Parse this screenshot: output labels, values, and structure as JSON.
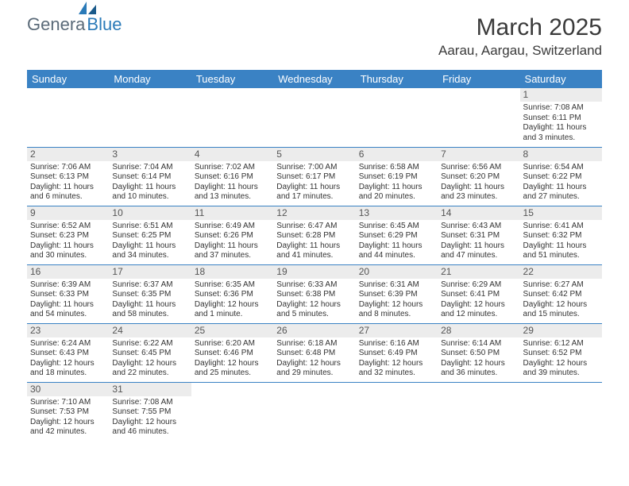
{
  "logo": {
    "main": "Genera",
    "sub": "Blue"
  },
  "title": "March 2025",
  "location": "Aarau, Aargau, Switzerland",
  "colors": {
    "header_bg": "#3a82c4",
    "header_text": "#ffffff",
    "daynum_bg": "#ececec",
    "border": "#3a82c4",
    "title_color": "#3a3a3a",
    "logo_main": "#5a6a78",
    "logo_sub": "#2a7ab8"
  },
  "day_headers": [
    "Sunday",
    "Monday",
    "Tuesday",
    "Wednesday",
    "Thursday",
    "Friday",
    "Saturday"
  ],
  "weeks": [
    [
      {
        "n": "",
        "sr": "",
        "ss": "",
        "dl": ""
      },
      {
        "n": "",
        "sr": "",
        "ss": "",
        "dl": ""
      },
      {
        "n": "",
        "sr": "",
        "ss": "",
        "dl": ""
      },
      {
        "n": "",
        "sr": "",
        "ss": "",
        "dl": ""
      },
      {
        "n": "",
        "sr": "",
        "ss": "",
        "dl": ""
      },
      {
        "n": "",
        "sr": "",
        "ss": "",
        "dl": ""
      },
      {
        "n": "1",
        "sr": "Sunrise: 7:08 AM",
        "ss": "Sunset: 6:11 PM",
        "dl": "Daylight: 11 hours and 3 minutes."
      }
    ],
    [
      {
        "n": "2",
        "sr": "Sunrise: 7:06 AM",
        "ss": "Sunset: 6:13 PM",
        "dl": "Daylight: 11 hours and 6 minutes."
      },
      {
        "n": "3",
        "sr": "Sunrise: 7:04 AM",
        "ss": "Sunset: 6:14 PM",
        "dl": "Daylight: 11 hours and 10 minutes."
      },
      {
        "n": "4",
        "sr": "Sunrise: 7:02 AM",
        "ss": "Sunset: 6:16 PM",
        "dl": "Daylight: 11 hours and 13 minutes."
      },
      {
        "n": "5",
        "sr": "Sunrise: 7:00 AM",
        "ss": "Sunset: 6:17 PM",
        "dl": "Daylight: 11 hours and 17 minutes."
      },
      {
        "n": "6",
        "sr": "Sunrise: 6:58 AM",
        "ss": "Sunset: 6:19 PM",
        "dl": "Daylight: 11 hours and 20 minutes."
      },
      {
        "n": "7",
        "sr": "Sunrise: 6:56 AM",
        "ss": "Sunset: 6:20 PM",
        "dl": "Daylight: 11 hours and 23 minutes."
      },
      {
        "n": "8",
        "sr": "Sunrise: 6:54 AM",
        "ss": "Sunset: 6:22 PM",
        "dl": "Daylight: 11 hours and 27 minutes."
      }
    ],
    [
      {
        "n": "9",
        "sr": "Sunrise: 6:52 AM",
        "ss": "Sunset: 6:23 PM",
        "dl": "Daylight: 11 hours and 30 minutes."
      },
      {
        "n": "10",
        "sr": "Sunrise: 6:51 AM",
        "ss": "Sunset: 6:25 PM",
        "dl": "Daylight: 11 hours and 34 minutes."
      },
      {
        "n": "11",
        "sr": "Sunrise: 6:49 AM",
        "ss": "Sunset: 6:26 PM",
        "dl": "Daylight: 11 hours and 37 minutes."
      },
      {
        "n": "12",
        "sr": "Sunrise: 6:47 AM",
        "ss": "Sunset: 6:28 PM",
        "dl": "Daylight: 11 hours and 41 minutes."
      },
      {
        "n": "13",
        "sr": "Sunrise: 6:45 AM",
        "ss": "Sunset: 6:29 PM",
        "dl": "Daylight: 11 hours and 44 minutes."
      },
      {
        "n": "14",
        "sr": "Sunrise: 6:43 AM",
        "ss": "Sunset: 6:31 PM",
        "dl": "Daylight: 11 hours and 47 minutes."
      },
      {
        "n": "15",
        "sr": "Sunrise: 6:41 AM",
        "ss": "Sunset: 6:32 PM",
        "dl": "Daylight: 11 hours and 51 minutes."
      }
    ],
    [
      {
        "n": "16",
        "sr": "Sunrise: 6:39 AM",
        "ss": "Sunset: 6:33 PM",
        "dl": "Daylight: 11 hours and 54 minutes."
      },
      {
        "n": "17",
        "sr": "Sunrise: 6:37 AM",
        "ss": "Sunset: 6:35 PM",
        "dl": "Daylight: 11 hours and 58 minutes."
      },
      {
        "n": "18",
        "sr": "Sunrise: 6:35 AM",
        "ss": "Sunset: 6:36 PM",
        "dl": "Daylight: 12 hours and 1 minute."
      },
      {
        "n": "19",
        "sr": "Sunrise: 6:33 AM",
        "ss": "Sunset: 6:38 PM",
        "dl": "Daylight: 12 hours and 5 minutes."
      },
      {
        "n": "20",
        "sr": "Sunrise: 6:31 AM",
        "ss": "Sunset: 6:39 PM",
        "dl": "Daylight: 12 hours and 8 minutes."
      },
      {
        "n": "21",
        "sr": "Sunrise: 6:29 AM",
        "ss": "Sunset: 6:41 PM",
        "dl": "Daylight: 12 hours and 12 minutes."
      },
      {
        "n": "22",
        "sr": "Sunrise: 6:27 AM",
        "ss": "Sunset: 6:42 PM",
        "dl": "Daylight: 12 hours and 15 minutes."
      }
    ],
    [
      {
        "n": "23",
        "sr": "Sunrise: 6:24 AM",
        "ss": "Sunset: 6:43 PM",
        "dl": "Daylight: 12 hours and 18 minutes."
      },
      {
        "n": "24",
        "sr": "Sunrise: 6:22 AM",
        "ss": "Sunset: 6:45 PM",
        "dl": "Daylight: 12 hours and 22 minutes."
      },
      {
        "n": "25",
        "sr": "Sunrise: 6:20 AM",
        "ss": "Sunset: 6:46 PM",
        "dl": "Daylight: 12 hours and 25 minutes."
      },
      {
        "n": "26",
        "sr": "Sunrise: 6:18 AM",
        "ss": "Sunset: 6:48 PM",
        "dl": "Daylight: 12 hours and 29 minutes."
      },
      {
        "n": "27",
        "sr": "Sunrise: 6:16 AM",
        "ss": "Sunset: 6:49 PM",
        "dl": "Daylight: 12 hours and 32 minutes."
      },
      {
        "n": "28",
        "sr": "Sunrise: 6:14 AM",
        "ss": "Sunset: 6:50 PM",
        "dl": "Daylight: 12 hours and 36 minutes."
      },
      {
        "n": "29",
        "sr": "Sunrise: 6:12 AM",
        "ss": "Sunset: 6:52 PM",
        "dl": "Daylight: 12 hours and 39 minutes."
      }
    ],
    [
      {
        "n": "30",
        "sr": "Sunrise: 7:10 AM",
        "ss": "Sunset: 7:53 PM",
        "dl": "Daylight: 12 hours and 42 minutes."
      },
      {
        "n": "31",
        "sr": "Sunrise: 7:08 AM",
        "ss": "Sunset: 7:55 PM",
        "dl": "Daylight: 12 hours and 46 minutes."
      },
      {
        "n": "",
        "sr": "",
        "ss": "",
        "dl": ""
      },
      {
        "n": "",
        "sr": "",
        "ss": "",
        "dl": ""
      },
      {
        "n": "",
        "sr": "",
        "ss": "",
        "dl": ""
      },
      {
        "n": "",
        "sr": "",
        "ss": "",
        "dl": ""
      },
      {
        "n": "",
        "sr": "",
        "ss": "",
        "dl": ""
      }
    ]
  ]
}
